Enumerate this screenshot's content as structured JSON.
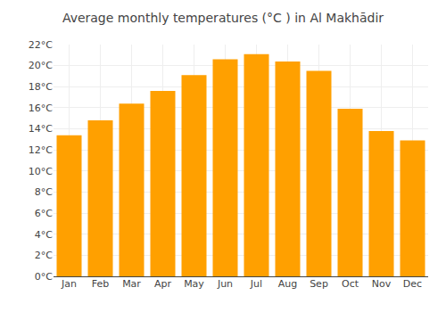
{
  "chart_data": {
    "type": "bar",
    "title": "Average monthly temperatures (°C ) in Al Makhādir",
    "categories": [
      "Jan",
      "Feb",
      "Mar",
      "Apr",
      "May",
      "Jun",
      "Jul",
      "Aug",
      "Sep",
      "Oct",
      "Nov",
      "Dec"
    ],
    "values": [
      13.4,
      14.8,
      16.4,
      17.6,
      19.1,
      20.6,
      21.1,
      20.4,
      19.5,
      15.9,
      13.8,
      12.9
    ],
    "color": "#FFA000",
    "ylim": [
      0,
      22
    ],
    "yticks": [
      {
        "value": 0,
        "label": "0°C"
      },
      {
        "value": 2,
        "label": "2°C"
      },
      {
        "value": 4,
        "label": "4°C"
      },
      {
        "value": 6,
        "label": "6°C"
      },
      {
        "value": 8,
        "label": "8°C"
      },
      {
        "value": 10,
        "label": "10°C"
      },
      {
        "value": 12,
        "label": "12°C"
      },
      {
        "value": 14,
        "label": "14°C"
      },
      {
        "value": 16,
        "label": "16°C"
      },
      {
        "value": 18,
        "label": "18°C"
      },
      {
        "value": 20,
        "label": "20°C"
      },
      {
        "value": 22,
        "label": "22°C"
      }
    ],
    "grid": true
  }
}
